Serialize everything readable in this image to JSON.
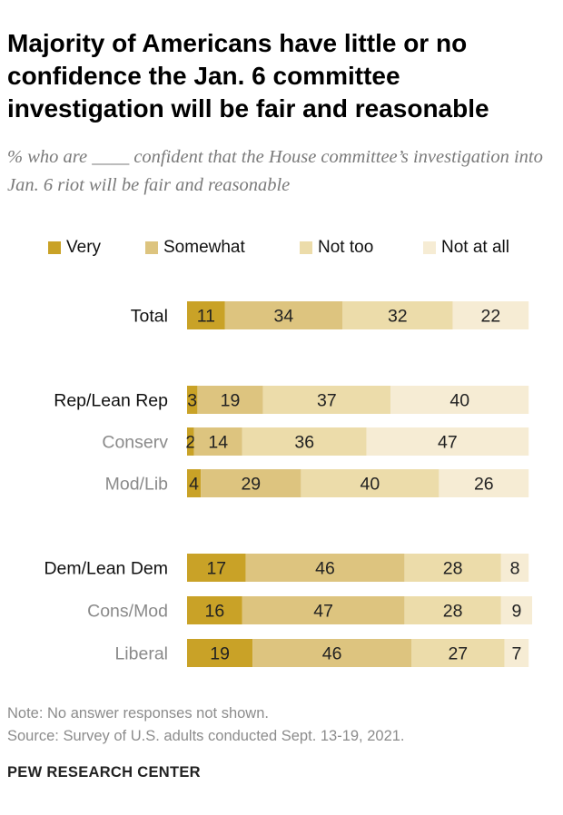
{
  "title": "Majority of Americans have little or no confidence the Jan. 6 committee investigation will be fair and reasonable",
  "subtitle": "% who are ____ confident that the House committee’s investigation into Jan. 6 riot will be fair and reasonable",
  "note": "Note: No answer responses not shown.",
  "source": "Source: Survey of U.S. adults conducted Sept. 13-19, 2021.",
  "brand": "PEW RESEARCH CENTER",
  "colors": {
    "very": "#c9a227",
    "somewhat": "#ddc47f",
    "not_too": "#ecdcaa",
    "not_at_all": "#f6ecd4",
    "label_main": "#111111",
    "label_sub": "#8a8a8a"
  },
  "chart_data": {
    "type": "bar",
    "orientation": "horizontal",
    "stacked": true,
    "title": "Majority of Americans have little or no confidence the Jan. 6 committee investigation will be fair and reasonable",
    "legend_position": "top",
    "series": [
      {
        "name": "Very",
        "key": "very"
      },
      {
        "name": "Somewhat",
        "key": "somewhat"
      },
      {
        "name": "Not too",
        "key": "not_too"
      },
      {
        "name": "Not at all",
        "key": "not_at_all"
      }
    ],
    "categories": [
      {
        "label": "Total",
        "style": "main",
        "values": [
          11,
          34,
          32,
          22
        ]
      },
      {
        "label": "Rep/Lean Rep",
        "style": "main",
        "values": [
          3,
          19,
          37,
          40
        ]
      },
      {
        "label": "Conserv",
        "style": "sub",
        "values": [
          2,
          14,
          36,
          47
        ]
      },
      {
        "label": "Mod/Lib",
        "style": "sub",
        "values": [
          4,
          29,
          40,
          26
        ]
      },
      {
        "label": "Dem/Lean Dem",
        "style": "main",
        "values": [
          17,
          46,
          28,
          8
        ]
      },
      {
        "label": "Cons/Mod",
        "style": "sub",
        "values": [
          16,
          47,
          28,
          9
        ]
      },
      {
        "label": "Liberal",
        "style": "sub",
        "values": [
          19,
          46,
          27,
          7
        ]
      }
    ],
    "xlim": [
      0,
      100
    ]
  }
}
